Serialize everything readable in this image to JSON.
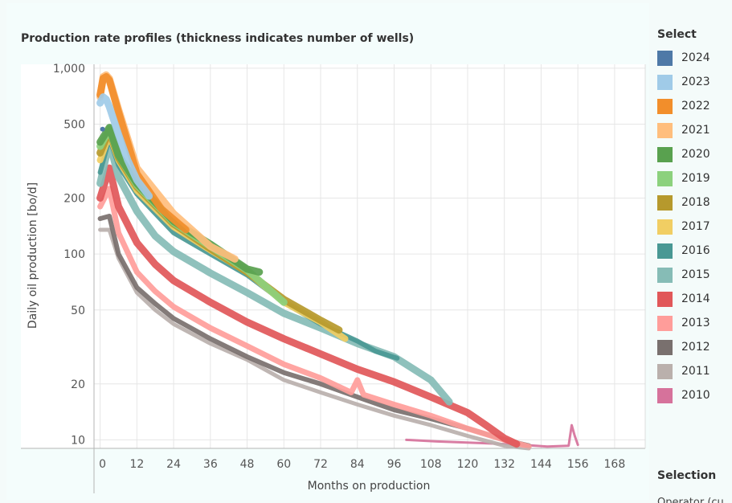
{
  "chart_data": {
    "type": "line",
    "title": "Production rate profiles (thickness indicates number of wells)",
    "xlabel": "Months on production",
    "ylabel": "Daily oil production [bo/d]",
    "y_scale": "log",
    "xlim": [
      -2,
      178
    ],
    "ylim": [
      9,
      1050
    ],
    "x_ticks": [
      0,
      12,
      24,
      36,
      48,
      60,
      72,
      84,
      96,
      108,
      120,
      132,
      144,
      156,
      168
    ],
    "x_tick_labels": [
      "0",
      "12",
      "24",
      "36",
      "48",
      "60",
      "72",
      "84",
      "96",
      "108",
      "120",
      "132",
      "144",
      "156",
      "168"
    ],
    "y_ticks": [
      10,
      20,
      50,
      100,
      200,
      500,
      1000
    ],
    "y_tick_labels": [
      "10",
      "20",
      "50",
      "100",
      "200",
      "500",
      "1,000"
    ],
    "series": [
      {
        "name": "2010",
        "color": "#d6729b",
        "points": [
          [
            100,
            10
          ],
          [
            110,
            9.8
          ],
          [
            125,
            9.6
          ],
          [
            138,
            9.4
          ],
          [
            146,
            9.2
          ],
          [
            153,
            9.3
          ],
          [
            154,
            12
          ],
          [
            155,
            10.5
          ],
          [
            156,
            9.4
          ]
        ]
      },
      {
        "name": "2011",
        "color": "#bab0ac",
        "points": [
          [
            0,
            135
          ],
          [
            3,
            135
          ],
          [
            6,
            95
          ],
          [
            12,
            62
          ],
          [
            18,
            50
          ],
          [
            24,
            42
          ],
          [
            36,
            33
          ],
          [
            48,
            27
          ],
          [
            60,
            21
          ],
          [
            72,
            18
          ],
          [
            84,
            15.5
          ],
          [
            96,
            13.5
          ],
          [
            108,
            12
          ],
          [
            120,
            10.5
          ],
          [
            132,
            9.3
          ],
          [
            140,
            9
          ]
        ]
      },
      {
        "name": "2012",
        "color": "#79706e",
        "points": [
          [
            0,
            155
          ],
          [
            3,
            160
          ],
          [
            6,
            100
          ],
          [
            12,
            66
          ],
          [
            18,
            54
          ],
          [
            24,
            45
          ],
          [
            36,
            35
          ],
          [
            48,
            28
          ],
          [
            60,
            23
          ],
          [
            72,
            20
          ],
          [
            84,
            17
          ],
          [
            96,
            14.5
          ],
          [
            108,
            13
          ],
          [
            120,
            11.5
          ],
          [
            132,
            10
          ],
          [
            140,
            9.3
          ]
        ]
      },
      {
        "name": "2013",
        "color": "#ff9d9a",
        "points": [
          [
            0,
            180
          ],
          [
            3,
            225
          ],
          [
            6,
            130
          ],
          [
            12,
            80
          ],
          [
            18,
            63
          ],
          [
            24,
            52
          ],
          [
            36,
            40
          ],
          [
            48,
            32
          ],
          [
            60,
            25.5
          ],
          [
            72,
            21.5
          ],
          [
            82,
            18
          ],
          [
            84,
            21
          ],
          [
            86,
            17.5
          ],
          [
            96,
            15.5
          ],
          [
            108,
            13.5
          ],
          [
            120,
            11.5
          ],
          [
            132,
            10
          ],
          [
            140,
            9.2
          ]
        ]
      },
      {
        "name": "2014",
        "color": "#e15759",
        "points": [
          [
            0,
            200
          ],
          [
            3,
            290
          ],
          [
            6,
            180
          ],
          [
            12,
            115
          ],
          [
            18,
            88
          ],
          [
            24,
            72
          ],
          [
            36,
            55
          ],
          [
            48,
            43
          ],
          [
            60,
            35
          ],
          [
            72,
            29
          ],
          [
            84,
            24
          ],
          [
            96,
            20.5
          ],
          [
            108,
            17
          ],
          [
            120,
            14
          ],
          [
            126,
            12
          ],
          [
            132,
            10.2
          ],
          [
            136,
            9.5
          ]
        ]
      },
      {
        "name": "2015",
        "color": "#86bcb6",
        "points": [
          [
            0,
            240
          ],
          [
            3,
            400
          ],
          [
            6,
            260
          ],
          [
            12,
            170
          ],
          [
            18,
            125
          ],
          [
            24,
            103
          ],
          [
            36,
            79
          ],
          [
            48,
            62
          ],
          [
            60,
            48
          ],
          [
            72,
            40
          ],
          [
            84,
            33
          ],
          [
            96,
            28
          ],
          [
            108,
            21
          ],
          [
            114,
            16
          ]
        ]
      },
      {
        "name": "2016",
        "color": "#499894",
        "points": [
          [
            0,
            275
          ],
          [
            3,
            420
          ],
          [
            6,
            300
          ],
          [
            12,
            210
          ],
          [
            24,
            130
          ],
          [
            36,
            100
          ],
          [
            48,
            77
          ],
          [
            60,
            55
          ],
          [
            72,
            42
          ],
          [
            84,
            34
          ],
          [
            90,
            30
          ],
          [
            97,
            27.5
          ]
        ]
      },
      {
        "name": "2017",
        "color": "#f1ce63",
        "points": [
          [
            0,
            320
          ],
          [
            3,
            440
          ],
          [
            6,
            320
          ],
          [
            12,
            220
          ],
          [
            24,
            140
          ],
          [
            36,
            105
          ],
          [
            48,
            80
          ],
          [
            60,
            55
          ],
          [
            72,
            43
          ],
          [
            80,
            35
          ]
        ]
      },
      {
        "name": "2018",
        "color": "#b6992d",
        "points": [
          [
            0,
            350
          ],
          [
            3,
            460
          ],
          [
            6,
            330
          ],
          [
            12,
            230
          ],
          [
            24,
            145
          ],
          [
            36,
            107
          ],
          [
            48,
            80
          ],
          [
            60,
            57
          ],
          [
            72,
            44
          ],
          [
            78,
            39
          ]
        ]
      },
      {
        "name": "2019",
        "color": "#8cd17d",
        "points": [
          [
            0,
            380
          ],
          [
            3,
            470
          ],
          [
            6,
            340
          ],
          [
            12,
            235
          ],
          [
            24,
            148
          ],
          [
            36,
            110
          ],
          [
            48,
            82
          ],
          [
            60,
            55
          ]
        ]
      },
      {
        "name": "2020",
        "color": "#59a14f",
        "points": [
          [
            0,
            400
          ],
          [
            3,
            480
          ],
          [
            6,
            340
          ],
          [
            12,
            240
          ],
          [
            24,
            150
          ],
          [
            36,
            113
          ],
          [
            48,
            83
          ],
          [
            52,
            80
          ]
        ]
      },
      {
        "name": "2021",
        "color": "#ffbe7d",
        "points": [
          [
            0,
            700
          ],
          [
            1,
            900
          ],
          [
            2,
            920
          ],
          [
            3,
            880
          ],
          [
            6,
            600
          ],
          [
            12,
            290
          ],
          [
            24,
            165
          ],
          [
            36,
            110
          ],
          [
            44,
            94
          ]
        ]
      },
      {
        "name": "2022",
        "color": "#f28e2b",
        "points": [
          [
            0,
            720
          ],
          [
            1,
            880
          ],
          [
            2,
            900
          ],
          [
            3,
            860
          ],
          [
            6,
            580
          ],
          [
            12,
            270
          ],
          [
            20,
            175
          ],
          [
            28,
            135
          ]
        ]
      },
      {
        "name": "2023",
        "color": "#a0cbe8",
        "points": [
          [
            0,
            650
          ],
          [
            1,
            700
          ],
          [
            2,
            680
          ],
          [
            3,
            620
          ],
          [
            6,
            440
          ],
          [
            9,
            320
          ],
          [
            12,
            250
          ],
          [
            16,
            205
          ]
        ]
      },
      {
        "name": "2024",
        "color": "#4e79a7",
        "points": [
          [
            0,
            470
          ]
        ]
      }
    ],
    "legend_title": "Select",
    "legend_placement": "right",
    "grid": true
  },
  "legend": {
    "title": "Select",
    "items": [
      {
        "label": "2024",
        "color": "#4e79a7"
      },
      {
        "label": "2023",
        "color": "#a0cbe8"
      },
      {
        "label": "2022",
        "color": "#f28e2b"
      },
      {
        "label": "2021",
        "color": "#ffbe7d"
      },
      {
        "label": "2020",
        "color": "#59a14f"
      },
      {
        "label": "2019",
        "color": "#8cd17d"
      },
      {
        "label": "2018",
        "color": "#b6992d"
      },
      {
        "label": "2017",
        "color": "#f1ce63"
      },
      {
        "label": "2016",
        "color": "#499894"
      },
      {
        "label": "2015",
        "color": "#86bcb6"
      },
      {
        "label": "2014",
        "color": "#e15759"
      },
      {
        "label": "2013",
        "color": "#ff9d9a"
      },
      {
        "label": "2012",
        "color": "#79706e"
      },
      {
        "label": "2011",
        "color": "#bab0ac"
      },
      {
        "label": "2010",
        "color": "#d6729b"
      }
    ]
  },
  "selection": {
    "title": "Selection",
    "subtitle": "Operator (cu"
  }
}
